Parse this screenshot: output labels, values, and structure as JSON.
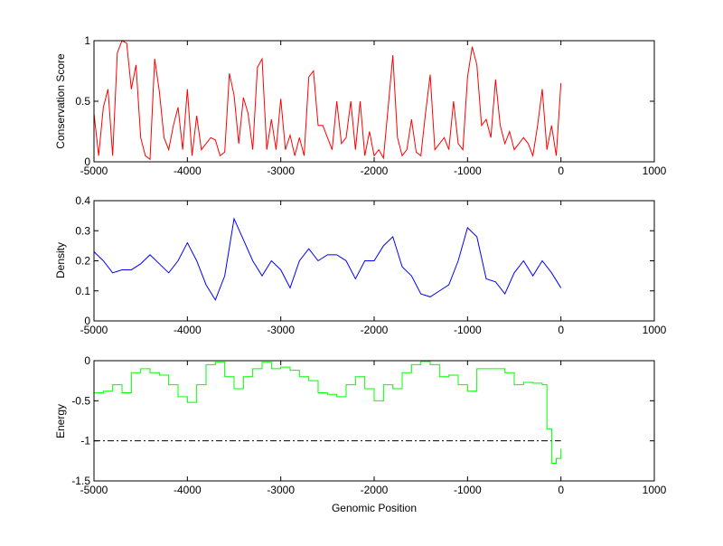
{
  "chart_data": [
    {
      "type": "line",
      "title": "",
      "xlabel": "",
      "ylabel": "Conservation Score",
      "xlim": [
        -5000,
        1000
      ],
      "ylim": [
        0,
        1
      ],
      "xticks": [
        -5000,
        -4000,
        -3000,
        -2000,
        -1000,
        0,
        1000
      ],
      "xtick_labels": [
        "-5000",
        "-4000",
        "-3000",
        "-2000",
        "-1000",
        "0",
        "1000"
      ],
      "yticks": [
        0,
        0.5,
        1
      ],
      "ytick_labels": [
        "0",
        "0.5",
        "1"
      ],
      "color": "#ff0000",
      "x_start": -5000,
      "x_step": 50,
      "values": [
        0.4,
        0.05,
        0.45,
        0.6,
        0.05,
        0.9,
        1.0,
        0.98,
        0.6,
        0.8,
        0.2,
        0.05,
        0.02,
        0.85,
        0.58,
        0.2,
        0.1,
        0.3,
        0.45,
        0.1,
        0.6,
        0.05,
        0.38,
        0.1,
        0.15,
        0.2,
        0.18,
        0.05,
        0.08,
        0.73,
        0.55,
        0.15,
        0.53,
        0.4,
        0.1,
        0.78,
        0.85,
        0.1,
        0.35,
        0.1,
        0.52,
        0.1,
        0.22,
        0.05,
        0.2,
        0.05,
        0.7,
        0.75,
        0.3,
        0.3,
        0.2,
        0.1,
        0.5,
        0.15,
        0.2,
        0.5,
        0.1,
        0.5,
        0.05,
        0.25,
        0.05,
        0.1,
        0.03,
        0.45,
        0.88,
        0.2,
        0.05,
        0.1,
        0.35,
        0.08,
        0.05,
        0.4,
        0.72,
        0.1,
        0.15,
        0.2,
        0.1,
        0.5,
        0.15,
        0.1,
        0.7,
        0.95,
        0.8,
        0.3,
        0.35,
        0.2,
        0.68,
        0.3,
        0.15,
        0.25,
        0.1,
        0.15,
        0.2,
        0.15,
        0.05,
        0.3,
        0.6,
        0.1,
        0.3,
        0.05,
        0.65
      ]
    },
    {
      "type": "line",
      "title": "",
      "xlabel": "",
      "ylabel": "Density",
      "xlim": [
        -5000,
        1000
      ],
      "ylim": [
        0,
        0.4
      ],
      "xticks": [
        -5000,
        -4000,
        -3000,
        -2000,
        -1000,
        0,
        1000
      ],
      "xtick_labels": [
        "-5000",
        "-4000",
        "-3000",
        "-2000",
        "-1000",
        "0",
        "1000"
      ],
      "yticks": [
        0,
        0.1,
        0.2,
        0.3,
        0.4
      ],
      "ytick_labels": [
        "0",
        "0.1",
        "0.2",
        "0.3",
        "0.4"
      ],
      "color": "#0000ff",
      "x_start": -5000,
      "x_step": 100,
      "values": [
        0.23,
        0.2,
        0.16,
        0.17,
        0.17,
        0.19,
        0.22,
        0.19,
        0.16,
        0.2,
        0.26,
        0.2,
        0.12,
        0.07,
        0.15,
        0.34,
        0.27,
        0.2,
        0.15,
        0.2,
        0.17,
        0.11,
        0.2,
        0.24,
        0.2,
        0.22,
        0.22,
        0.2,
        0.14,
        0.2,
        0.2,
        0.25,
        0.28,
        0.18,
        0.15,
        0.09,
        0.08,
        0.1,
        0.12,
        0.2,
        0.31,
        0.28,
        0.14,
        0.13,
        0.09,
        0.16,
        0.2,
        0.15,
        0.2,
        0.16,
        0.11
      ]
    },
    {
      "type": "line",
      "title": "",
      "xlabel": "Genomic Position",
      "ylabel": "Energy",
      "xlim": [
        -5000,
        1000
      ],
      "ylim": [
        -1.5,
        0
      ],
      "xticks": [
        -5000,
        -4000,
        -3000,
        -2000,
        -1000,
        0,
        1000
      ],
      "xtick_labels": [
        "-5000",
        "-4000",
        "-3000",
        "-2000",
        "-1000",
        "0",
        "1000"
      ],
      "yticks": [
        -1.5,
        -1,
        -0.5,
        0
      ],
      "ytick_labels": [
        "-1.5",
        "-1",
        "-0.5",
        "0"
      ],
      "color": "#00ff00",
      "step": true,
      "x": [
        -5000,
        -4900,
        -4800,
        -4700,
        -4600,
        -4500,
        -4400,
        -4300,
        -4200,
        -4100,
        -4000,
        -3900,
        -3800,
        -3700,
        -3600,
        -3500,
        -3400,
        -3300,
        -3200,
        -3100,
        -3000,
        -2900,
        -2800,
        -2700,
        -2600,
        -2500,
        -2400,
        -2300,
        -2200,
        -2100,
        -2000,
        -1900,
        -1800,
        -1700,
        -1600,
        -1500,
        -1400,
        -1300,
        -1200,
        -1100,
        -1000,
        -900,
        -800,
        -700,
        -600,
        -500,
        -400,
        -300,
        -200,
        -150,
        -100,
        -50,
        0
      ],
      "values": [
        -0.4,
        -0.38,
        -0.3,
        -0.4,
        -0.15,
        -0.1,
        -0.15,
        -0.18,
        -0.3,
        -0.45,
        -0.52,
        -0.3,
        -0.05,
        -0.02,
        -0.2,
        -0.35,
        -0.2,
        -0.1,
        -0.02,
        -0.1,
        -0.08,
        -0.12,
        -0.2,
        -0.25,
        -0.4,
        -0.42,
        -0.45,
        -0.3,
        -0.2,
        -0.35,
        -0.5,
        -0.3,
        -0.35,
        -0.15,
        -0.05,
        -0.01,
        -0.05,
        -0.2,
        -0.18,
        -0.3,
        -0.38,
        -0.1,
        -0.1,
        -0.1,
        -0.15,
        -0.3,
        -0.27,
        -0.28,
        -0.3,
        -0.85,
        -1.28,
        -1.22,
        -1.1
      ],
      "reference_line": {
        "y": -1,
        "style": "dash-dot",
        "color": "#000000"
      }
    }
  ]
}
